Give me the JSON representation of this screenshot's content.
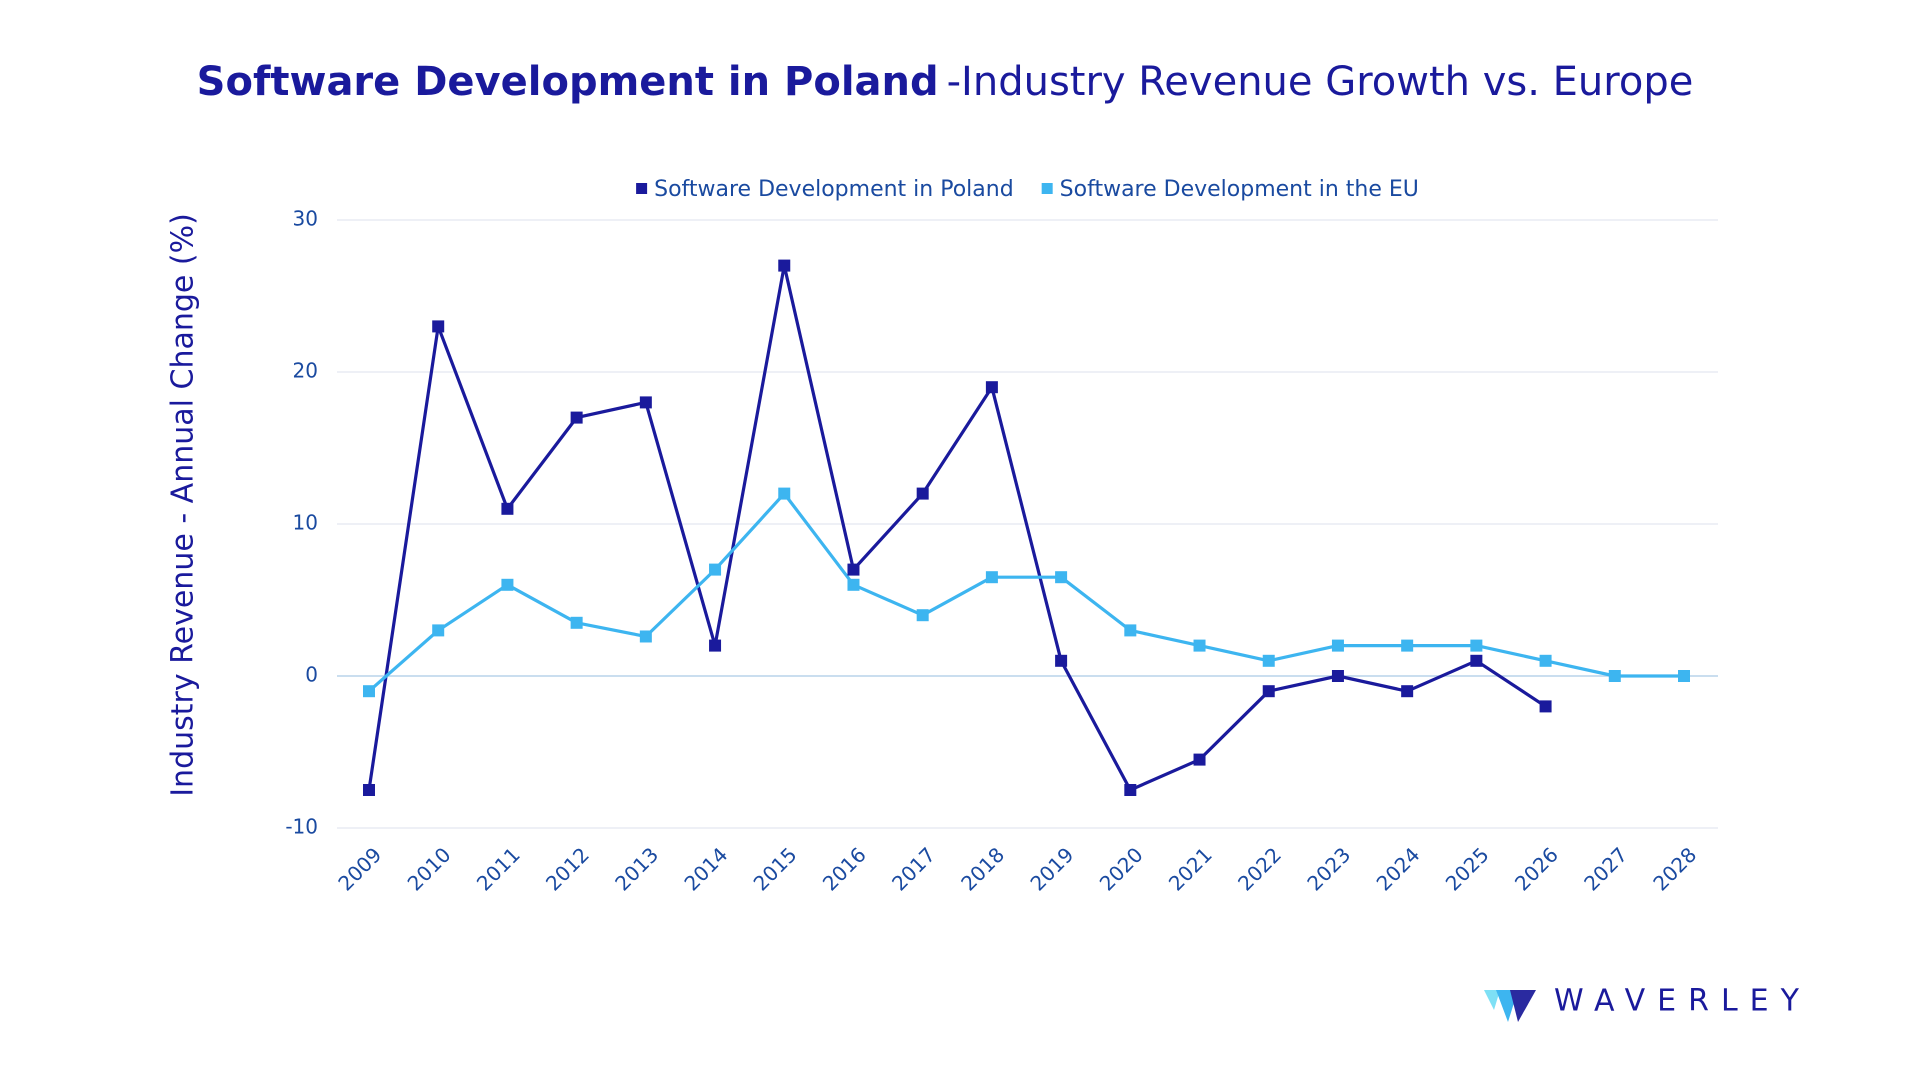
{
  "chart_data": {
    "type": "line",
    "title": "Software Development in Poland",
    "subtitle": "-Industry Revenue Growth vs. Europe",
    "y_label": "Industry Revenue - Annual Change (%)",
    "categories": [
      "2009",
      "2010",
      "2011",
      "2012",
      "2013",
      "2014",
      "2015",
      "2016",
      "2017",
      "2018",
      "2019",
      "2020",
      "2021",
      "2022",
      "2023",
      "2024",
      "2025",
      "2026",
      "2027",
      "2028"
    ],
    "series": [
      {
        "name": "Software Development in Poland",
        "color": "#1a1a9c",
        "values": [
          -7.5,
          23,
          11,
          17,
          18,
          2,
          27,
          7,
          12,
          19,
          1,
          -7.5,
          -5.5,
          -1,
          0,
          -1,
          1,
          -2,
          null,
          null
        ]
      },
      {
        "name": "Software Development in the EU",
        "color": "#3db5f0",
        "values": [
          -1,
          3,
          6,
          3.5,
          2.6,
          7,
          12,
          6,
          4,
          6.5,
          6.5,
          3,
          2,
          1,
          2,
          2,
          2,
          1,
          0,
          0
        ]
      }
    ],
    "ylim": [
      -10,
      30
    ],
    "yticks": [
      -10,
      0,
      10,
      20,
      30
    ],
    "grid": true,
    "legend": "top"
  },
  "brand": "WAVERLEY"
}
